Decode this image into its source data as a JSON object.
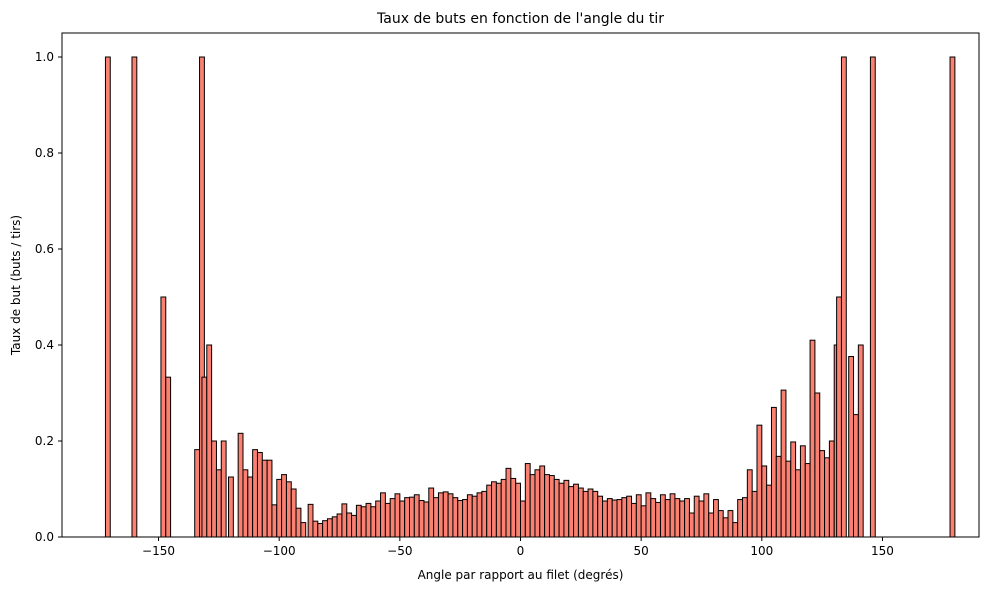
{
  "chart_data": {
    "type": "bar",
    "title": "Taux de buts en fonction de l'angle du tir",
    "xlabel": "Angle par rapport au filet (degrés)",
    "ylabel": "Taux de but (buts / tirs)",
    "xlim": [
      -190,
      190
    ],
    "ylim": [
      0,
      1.05
    ],
    "x_ticks": [
      -150,
      -100,
      -50,
      0,
      50,
      100,
      150
    ],
    "x_tick_labels": [
      "−150",
      "−100",
      "−50",
      "0",
      "50",
      "100",
      "150"
    ],
    "y_ticks": [
      0.0,
      0.2,
      0.4,
      0.6,
      0.8,
      1.0
    ],
    "y_tick_labels": [
      "0.0",
      "0.2",
      "0.4",
      "0.6",
      "0.8",
      "1.0"
    ],
    "bin_width": 2,
    "grid": false,
    "legend": false,
    "bar_color": "#fa8072",
    "edge_color": "#000000",
    "bins": [
      [
        -172,
        1.0
      ],
      [
        -161,
        1.0
      ],
      [
        -149,
        0.5
      ],
      [
        -147,
        0.333
      ],
      [
        -135,
        0.182
      ],
      [
        -133,
        1.0
      ],
      [
        -132,
        0.333
      ],
      [
        -130,
        0.4
      ],
      [
        -128,
        0.2
      ],
      [
        -126,
        0.14
      ],
      [
        -124,
        0.2
      ],
      [
        -121,
        0.125
      ],
      [
        -117,
        0.216
      ],
      [
        -115,
        0.14
      ],
      [
        -113,
        0.125
      ],
      [
        -111,
        0.182
      ],
      [
        -109,
        0.176
      ],
      [
        -107,
        0.16
      ],
      [
        -105,
        0.16
      ],
      [
        -103,
        0.067
      ],
      [
        -101,
        0.12
      ],
      [
        -99,
        0.13
      ],
      [
        -97,
        0.115
      ],
      [
        -95,
        0.1
      ],
      [
        -93,
        0.06
      ],
      [
        -91,
        0.03
      ],
      [
        -88,
        0.068
      ],
      [
        -86,
        0.033
      ],
      [
        -84,
        0.028
      ],
      [
        -82,
        0.034
      ],
      [
        -80,
        0.038
      ],
      [
        -78,
        0.042
      ],
      [
        -76,
        0.048
      ],
      [
        -74,
        0.069
      ],
      [
        -72,
        0.05
      ],
      [
        -70,
        0.045
      ],
      [
        -68,
        0.066
      ],
      [
        -66,
        0.063
      ],
      [
        -64,
        0.07
      ],
      [
        -62,
        0.063
      ],
      [
        -60,
        0.075
      ],
      [
        -58,
        0.092
      ],
      [
        -56,
        0.07
      ],
      [
        -54,
        0.08
      ],
      [
        -52,
        0.09
      ],
      [
        -50,
        0.075
      ],
      [
        -48,
        0.082
      ],
      [
        -46,
        0.083
      ],
      [
        -44,
        0.088
      ],
      [
        -42,
        0.076
      ],
      [
        -40,
        0.073
      ],
      [
        -38,
        0.102
      ],
      [
        -36,
        0.082
      ],
      [
        -34,
        0.092
      ],
      [
        -32,
        0.094
      ],
      [
        -30,
        0.09
      ],
      [
        -28,
        0.082
      ],
      [
        -26,
        0.076
      ],
      [
        -24,
        0.078
      ],
      [
        -22,
        0.088
      ],
      [
        -20,
        0.085
      ],
      [
        -18,
        0.092
      ],
      [
        -16,
        0.095
      ],
      [
        -14,
        0.108
      ],
      [
        -12,
        0.115
      ],
      [
        -10,
        0.112
      ],
      [
        -8,
        0.12
      ],
      [
        -6,
        0.143
      ],
      [
        -4,
        0.122
      ],
      [
        -2,
        0.112
      ],
      [
        0,
        0.075
      ],
      [
        2,
        0.153
      ],
      [
        4,
        0.13
      ],
      [
        6,
        0.14
      ],
      [
        8,
        0.148
      ],
      [
        10,
        0.13
      ],
      [
        12,
        0.128
      ],
      [
        14,
        0.12
      ],
      [
        16,
        0.112
      ],
      [
        18,
        0.118
      ],
      [
        20,
        0.105
      ],
      [
        22,
        0.11
      ],
      [
        24,
        0.102
      ],
      [
        26,
        0.095
      ],
      [
        28,
        0.1
      ],
      [
        30,
        0.095
      ],
      [
        32,
        0.085
      ],
      [
        34,
        0.075
      ],
      [
        36,
        0.08
      ],
      [
        38,
        0.077
      ],
      [
        40,
        0.078
      ],
      [
        42,
        0.082
      ],
      [
        44,
        0.085
      ],
      [
        46,
        0.07
      ],
      [
        48,
        0.088
      ],
      [
        50,
        0.065
      ],
      [
        52,
        0.092
      ],
      [
        54,
        0.08
      ],
      [
        56,
        0.072
      ],
      [
        58,
        0.088
      ],
      [
        60,
        0.078
      ],
      [
        62,
        0.09
      ],
      [
        64,
        0.08
      ],
      [
        66,
        0.075
      ],
      [
        68,
        0.08
      ],
      [
        70,
        0.05
      ],
      [
        72,
        0.085
      ],
      [
        74,
        0.075
      ],
      [
        76,
        0.09
      ],
      [
        78,
        0.05
      ],
      [
        80,
        0.078
      ],
      [
        82,
        0.055
      ],
      [
        84,
        0.04
      ],
      [
        86,
        0.055
      ],
      [
        88,
        0.03
      ],
      [
        90,
        0.078
      ],
      [
        92,
        0.082
      ],
      [
        94,
        0.14
      ],
      [
        96,
        0.095
      ],
      [
        98,
        0.233
      ],
      [
        100,
        0.148
      ],
      [
        102,
        0.108
      ],
      [
        104,
        0.27
      ],
      [
        106,
        0.168
      ],
      [
        108,
        0.306
      ],
      [
        110,
        0.158
      ],
      [
        112,
        0.198
      ],
      [
        114,
        0.14
      ],
      [
        116,
        0.19
      ],
      [
        118,
        0.153
      ],
      [
        120,
        0.41
      ],
      [
        122,
        0.3
      ],
      [
        124,
        0.18
      ],
      [
        126,
        0.165
      ],
      [
        128,
        0.2
      ],
      [
        130,
        0.4
      ],
      [
        131,
        0.5
      ],
      [
        133,
        1.0
      ],
      [
        136,
        0.376
      ],
      [
        138,
        0.255
      ],
      [
        140,
        0.4
      ],
      [
        145,
        1.0
      ],
      [
        178,
        1.0
      ]
    ]
  }
}
